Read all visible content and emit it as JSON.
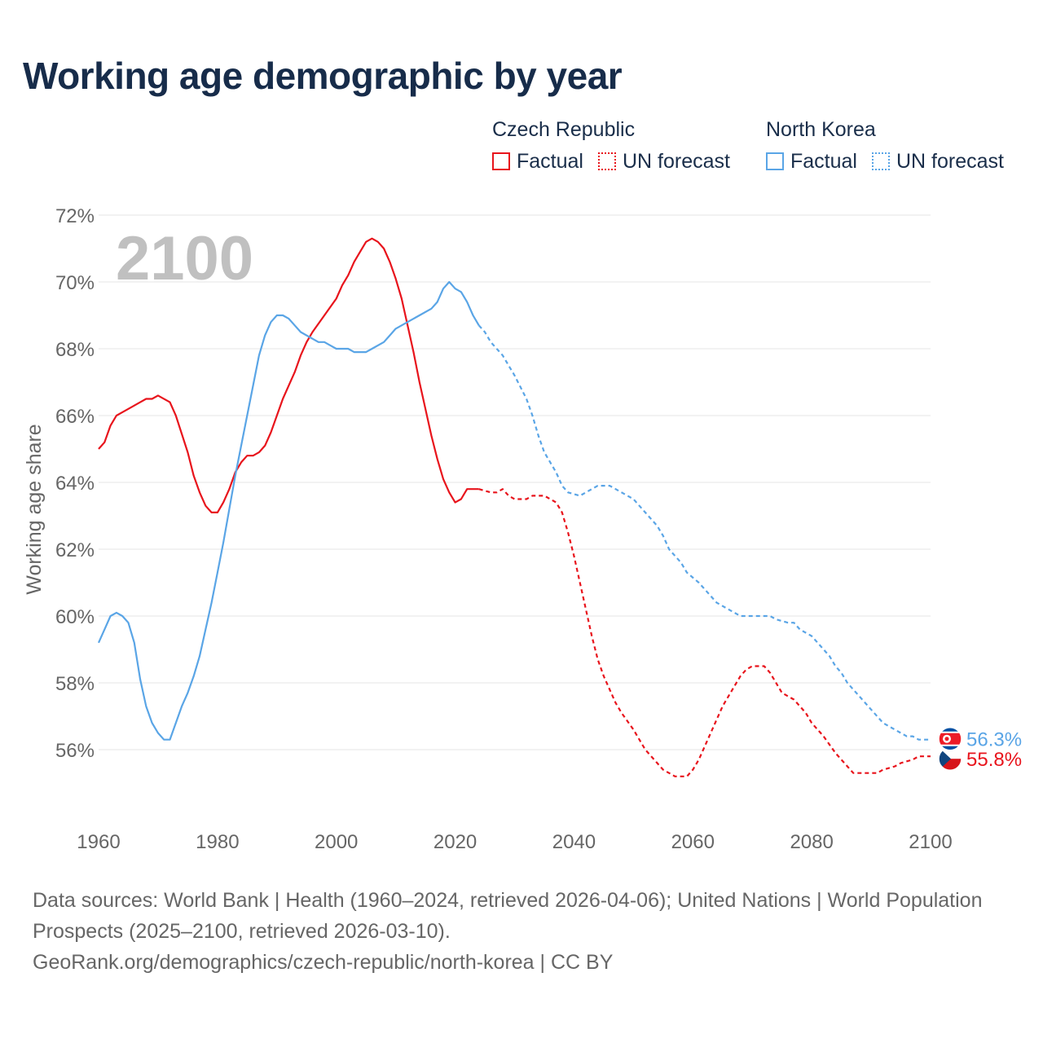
{
  "title": "Working age demographic by year",
  "legend": {
    "groups": [
      {
        "name": "Czech Republic",
        "color": "#e8141c",
        "factual_label": "Factual",
        "forecast_label": "UN forecast"
      },
      {
        "name": "North Korea",
        "color": "#5aa5e6",
        "factual_label": "Factual",
        "forecast_label": "UN forecast"
      }
    ]
  },
  "year_overlay": "2100",
  "footer": {
    "line1": "Data sources: World Bank | Health (1960–2024, retrieved 2026-04-06); United Nations | World Population Prospects (2025–2100, retrieved 2026-03-10).",
    "line2": "GeoRank.org/demographics/czech-republic/north-korea | CC BY"
  },
  "chart_data": {
    "type": "line",
    "title": "Working age demographic by year",
    "xlabel": "",
    "ylabel": "Working age share",
    "xlim": [
      1960,
      2100
    ],
    "ylim": [
      54,
      72
    ],
    "x_ticks": [
      1960,
      1980,
      2000,
      2020,
      2040,
      2060,
      2080,
      2100
    ],
    "y_ticks": [
      56,
      58,
      60,
      62,
      64,
      66,
      68,
      70,
      72
    ],
    "y_tick_labels": [
      "56%",
      "58%",
      "60%",
      "62%",
      "64%",
      "66%",
      "68%",
      "70%",
      "72%"
    ],
    "x_tick_labels": [
      "1960",
      "1980",
      "2000",
      "2020",
      "2040",
      "2060",
      "2080",
      "2100"
    ],
    "forecast_start": 2024,
    "series": [
      {
        "name": "Czech Republic",
        "color": "#e8141c",
        "end_label": "55.8%",
        "points": [
          [
            1960,
            65.0
          ],
          [
            1961,
            65.2
          ],
          [
            1962,
            65.7
          ],
          [
            1963,
            66.0
          ],
          [
            1965,
            66.2
          ],
          [
            1967,
            66.4
          ],
          [
            1968,
            66.5
          ],
          [
            1969,
            66.5
          ],
          [
            1970,
            66.6
          ],
          [
            1972,
            66.4
          ],
          [
            1973,
            66.0
          ],
          [
            1975,
            64.9
          ],
          [
            1976,
            64.2
          ],
          [
            1977,
            63.7
          ],
          [
            1978,
            63.3
          ],
          [
            1979,
            63.1
          ],
          [
            1980,
            63.1
          ],
          [
            1981,
            63.4
          ],
          [
            1982,
            63.8
          ],
          [
            1983,
            64.3
          ],
          [
            1984,
            64.6
          ],
          [
            1985,
            64.8
          ],
          [
            1986,
            64.8
          ],
          [
            1987,
            64.9
          ],
          [
            1988,
            65.1
          ],
          [
            1989,
            65.5
          ],
          [
            1990,
            66.0
          ],
          [
            1991,
            66.5
          ],
          [
            1992,
            66.9
          ],
          [
            1993,
            67.3
          ],
          [
            1994,
            67.8
          ],
          [
            1995,
            68.2
          ],
          [
            1996,
            68.5
          ],
          [
            1998,
            69.0
          ],
          [
            2000,
            69.5
          ],
          [
            2001,
            69.9
          ],
          [
            2002,
            70.2
          ],
          [
            2003,
            70.6
          ],
          [
            2004,
            70.9
          ],
          [
            2005,
            71.2
          ],
          [
            2006,
            71.3
          ],
          [
            2007,
            71.2
          ],
          [
            2008,
            71.0
          ],
          [
            2009,
            70.6
          ],
          [
            2010,
            70.1
          ],
          [
            2011,
            69.5
          ],
          [
            2012,
            68.7
          ],
          [
            2013,
            67.9
          ],
          [
            2014,
            67.0
          ],
          [
            2015,
            66.2
          ],
          [
            2016,
            65.4
          ],
          [
            2017,
            64.7
          ],
          [
            2018,
            64.1
          ],
          [
            2019,
            63.7
          ],
          [
            2020,
            63.4
          ],
          [
            2021,
            63.5
          ],
          [
            2022,
            63.8
          ],
          [
            2023,
            63.8
          ],
          [
            2024,
            63.8
          ],
          [
            2026,
            63.7
          ],
          [
            2027,
            63.7
          ],
          [
            2028,
            63.8
          ],
          [
            2029,
            63.6
          ],
          [
            2030,
            63.5
          ],
          [
            2032,
            63.5
          ],
          [
            2033,
            63.6
          ],
          [
            2035,
            63.6
          ],
          [
            2037,
            63.4
          ],
          [
            2038,
            63.1
          ],
          [
            2039,
            62.5
          ],
          [
            2040,
            61.8
          ],
          [
            2041,
            61.0
          ],
          [
            2042,
            60.2
          ],
          [
            2043,
            59.4
          ],
          [
            2044,
            58.7
          ],
          [
            2045,
            58.2
          ],
          [
            2046,
            57.8
          ],
          [
            2047,
            57.4
          ],
          [
            2048,
            57.1
          ],
          [
            2050,
            56.6
          ],
          [
            2052,
            56.0
          ],
          [
            2054,
            55.6
          ],
          [
            2055,
            55.4
          ],
          [
            2056,
            55.3
          ],
          [
            2057,
            55.2
          ],
          [
            2059,
            55.2
          ],
          [
            2060,
            55.4
          ],
          [
            2061,
            55.7
          ],
          [
            2062,
            56.1
          ],
          [
            2063,
            56.5
          ],
          [
            2064,
            56.9
          ],
          [
            2065,
            57.3
          ],
          [
            2066,
            57.6
          ],
          [
            2067,
            57.9
          ],
          [
            2068,
            58.2
          ],
          [
            2069,
            58.4
          ],
          [
            2070,
            58.5
          ],
          [
            2071,
            58.5
          ],
          [
            2072,
            58.5
          ],
          [
            2073,
            58.3
          ],
          [
            2074,
            58.0
          ],
          [
            2075,
            57.7
          ],
          [
            2077,
            57.5
          ],
          [
            2078,
            57.3
          ],
          [
            2079,
            57.1
          ],
          [
            2080,
            56.8
          ],
          [
            2082,
            56.4
          ],
          [
            2084,
            55.9
          ],
          [
            2086,
            55.5
          ],
          [
            2087,
            55.3
          ],
          [
            2088,
            55.3
          ],
          [
            2089,
            55.3
          ],
          [
            2091,
            55.3
          ],
          [
            2092,
            55.4
          ],
          [
            2094,
            55.5
          ],
          [
            2095,
            55.6
          ],
          [
            2097,
            55.7
          ],
          [
            2098,
            55.8
          ],
          [
            2099,
            55.8
          ],
          [
            2100,
            55.8
          ]
        ]
      },
      {
        "name": "North Korea",
        "color": "#5aa5e6",
        "end_label": "56.3%",
        "points": [
          [
            1960,
            59.2
          ],
          [
            1961,
            59.6
          ],
          [
            1962,
            60.0
          ],
          [
            1963,
            60.1
          ],
          [
            1964,
            60.0
          ],
          [
            1965,
            59.8
          ],
          [
            1966,
            59.2
          ],
          [
            1967,
            58.1
          ],
          [
            1968,
            57.3
          ],
          [
            1969,
            56.8
          ],
          [
            1970,
            56.5
          ],
          [
            1971,
            56.3
          ],
          [
            1972,
            56.3
          ],
          [
            1973,
            56.8
          ],
          [
            1974,
            57.3
          ],
          [
            1975,
            57.7
          ],
          [
            1976,
            58.2
          ],
          [
            1977,
            58.8
          ],
          [
            1978,
            59.6
          ],
          [
            1979,
            60.4
          ],
          [
            1980,
            61.3
          ],
          [
            1981,
            62.2
          ],
          [
            1982,
            63.2
          ],
          [
            1983,
            64.2
          ],
          [
            1984,
            65.1
          ],
          [
            1985,
            66.0
          ],
          [
            1986,
            66.9
          ],
          [
            1987,
            67.8
          ],
          [
            1988,
            68.4
          ],
          [
            1989,
            68.8
          ],
          [
            1990,
            69.0
          ],
          [
            1991,
            69.0
          ],
          [
            1992,
            68.9
          ],
          [
            1993,
            68.7
          ],
          [
            1994,
            68.5
          ],
          [
            1996,
            68.3
          ],
          [
            1997,
            68.2
          ],
          [
            1998,
            68.2
          ],
          [
            1999,
            68.1
          ],
          [
            2000,
            68.0
          ],
          [
            2002,
            68.0
          ],
          [
            2003,
            67.9
          ],
          [
            2005,
            67.9
          ],
          [
            2006,
            68.0
          ],
          [
            2008,
            68.2
          ],
          [
            2009,
            68.4
          ],
          [
            2010,
            68.6
          ],
          [
            2012,
            68.8
          ],
          [
            2014,
            69.0
          ],
          [
            2016,
            69.2
          ],
          [
            2017,
            69.4
          ],
          [
            2018,
            69.8
          ],
          [
            2019,
            70.0
          ],
          [
            2020,
            69.8
          ],
          [
            2021,
            69.7
          ],
          [
            2022,
            69.4
          ],
          [
            2023,
            69.0
          ],
          [
            2024,
            68.7
          ],
          [
            2025,
            68.5
          ],
          [
            2026,
            68.2
          ],
          [
            2028,
            67.8
          ],
          [
            2030,
            67.2
          ],
          [
            2032,
            66.5
          ],
          [
            2033,
            66.0
          ],
          [
            2034,
            65.4
          ],
          [
            2035,
            64.9
          ],
          [
            2037,
            64.3
          ],
          [
            2038,
            63.9
          ],
          [
            2039,
            63.7
          ],
          [
            2041,
            63.6
          ],
          [
            2042,
            63.7
          ],
          [
            2043,
            63.8
          ],
          [
            2044,
            63.9
          ],
          [
            2046,
            63.9
          ],
          [
            2047,
            63.8
          ],
          [
            2048,
            63.7
          ],
          [
            2050,
            63.5
          ],
          [
            2052,
            63.1
          ],
          [
            2054,
            62.7
          ],
          [
            2055,
            62.4
          ],
          [
            2056,
            62.0
          ],
          [
            2058,
            61.6
          ],
          [
            2059,
            61.3
          ],
          [
            2061,
            61.0
          ],
          [
            2063,
            60.6
          ],
          [
            2064,
            60.4
          ],
          [
            2066,
            60.2
          ],
          [
            2068,
            60.0
          ],
          [
            2070,
            60.0
          ],
          [
            2073,
            60.0
          ],
          [
            2074,
            59.9
          ],
          [
            2076,
            59.8
          ],
          [
            2077,
            59.8
          ],
          [
            2078,
            59.6
          ],
          [
            2080,
            59.4
          ],
          [
            2082,
            59.0
          ],
          [
            2083,
            58.8
          ],
          [
            2084,
            58.5
          ],
          [
            2085,
            58.3
          ],
          [
            2086,
            58.0
          ],
          [
            2088,
            57.6
          ],
          [
            2090,
            57.2
          ],
          [
            2091,
            57.0
          ],
          [
            2092,
            56.8
          ],
          [
            2094,
            56.6
          ],
          [
            2096,
            56.4
          ],
          [
            2097,
            56.4
          ],
          [
            2098,
            56.3
          ],
          [
            2099,
            56.3
          ],
          [
            2100,
            56.3
          ]
        ]
      }
    ]
  }
}
